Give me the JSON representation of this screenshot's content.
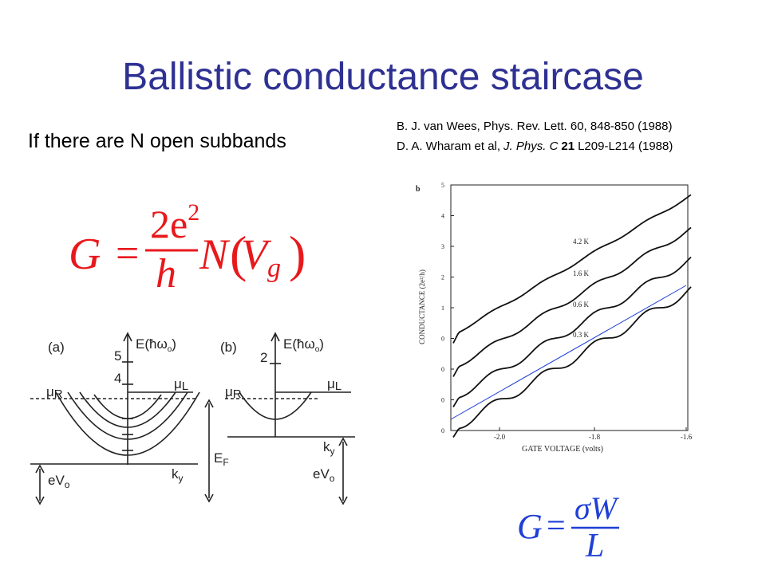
{
  "title": "Ballistic conductance staircase",
  "subtitle": "If there are N open subbands",
  "citation_1": "B. J. van Wees, Phys. Rev. Lett. 60, 848-850 (1988)",
  "citation_2": {
    "authors": "D. A. Wharam et al,",
    "journal": "J. Phys. C",
    "volume": "21",
    "pages": "L209-L214 (1988)"
  },
  "formula_1": {
    "lhs": "G",
    "equals": "=",
    "numerator": "2e",
    "numerator_sup": "2",
    "denominator": "h",
    "factor": "N",
    "open": "(",
    "var": "V",
    "var_sub": "g",
    "close": ")"
  },
  "formula_2": {
    "lhs": "G",
    "equals": "=",
    "numerator": "σW",
    "denominator": "L"
  },
  "figure_b": {
    "panel": "b",
    "y_label": "CONDUCTANCE (2e²/h)",
    "x_label": "GATE VOLTAGE (volts)",
    "y_tick_labels": [
      "5",
      "4",
      "3",
      "2",
      "1",
      "0",
      "0",
      "0",
      "0"
    ],
    "x_tick_labels": [
      "-2.0",
      "-1.8",
      "-1.6"
    ],
    "curve_labels": [
      "4.2 K",
      "1.6 K",
      "0.6 K",
      "0.3 K"
    ]
  },
  "figure_a": {
    "panel_a": "(a)",
    "panel_b": "(b)",
    "energy_axis": "E(ħω",
    "energy_sub": "o",
    "energy_close": ")",
    "level_5": "5",
    "level_4": "4",
    "level_2": "2",
    "mu": "μ",
    "sub_r": "R",
    "sub_l": "L",
    "ev": "eV",
    "ev_sub": "o",
    "k": "k",
    "k_sub": "y",
    "ef": "E",
    "ef_sub": "F"
  }
}
